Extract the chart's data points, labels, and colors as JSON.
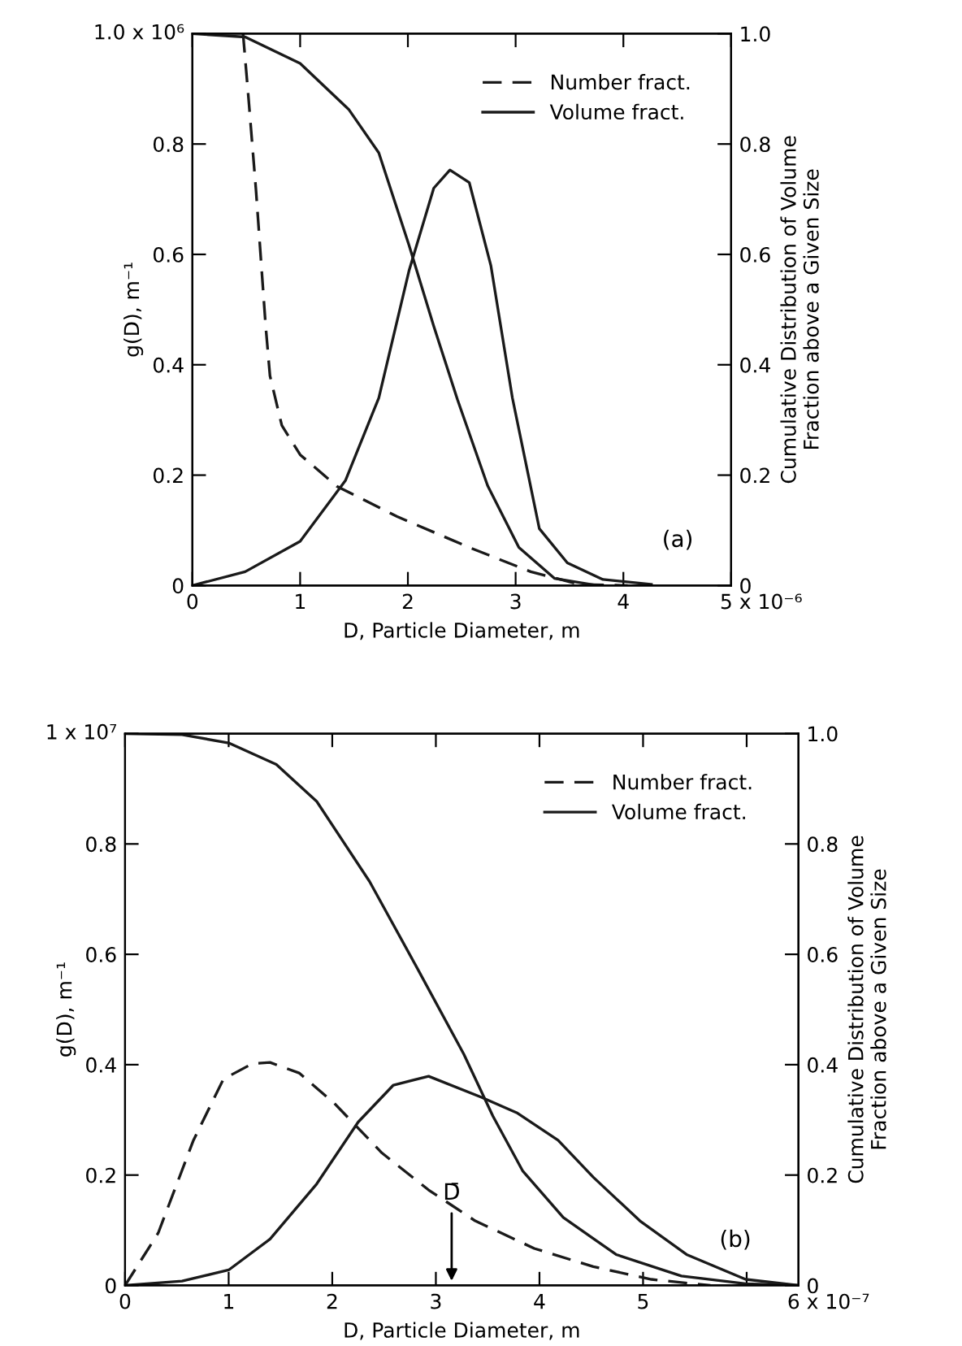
{
  "chart_data": [
    {
      "type": "line",
      "xlabel": "D, Particle Diameter, m",
      "ylabel": "g(D), m⁻¹",
      "y2label": "Cumulative Distribution of Volume\nFraction above a Given Size",
      "xlim": [
        0,
        5
      ],
      "xticks": [
        0,
        1,
        2,
        3,
        4,
        {
          "value": 5,
          "label": null
        }
      ],
      "ylim": [
        0,
        1.0
      ],
      "yticks": [
        0,
        0.2,
        0.4,
        0.6,
        0.8,
        {
          "value": 1.0,
          "label": null
        }
      ],
      "y2lim": [
        0,
        1.0
      ],
      "y2ticks": [
        0,
        0.2,
        0.4,
        0.6,
        0.8,
        {
          "value": 1,
          "label": "1.0"
        }
      ],
      "legend": "top right",
      "grid": false,
      "annotations": [
        "(a)",
        "1.0 x 10⁶",
        "5 x 10⁻⁶"
      ],
      "series": [
        {
          "name": "Number fract.",
          "color": "#1a1a1a",
          "line_style": "dashed",
          "x": [
            0.47,
            0.52,
            0.59,
            0.68,
            0.72,
            0.83,
            1.0,
            1.34,
            1.9,
            2.57,
            3.14,
            3.59,
            4.04
          ],
          "values": [
            1.0,
            0.885,
            0.717,
            0.47,
            0.38,
            0.29,
            0.237,
            0.18,
            0.125,
            0.069,
            0.025,
            0.002,
            0.0
          ]
        },
        {
          "name": "Volume fract.",
          "color": "#1a1a1a",
          "line_style": "solid",
          "x": [
            0,
            0.49,
            1.0,
            1.42,
            1.73,
            2.01,
            2.24,
            2.39,
            2.57,
            2.77,
            2.97,
            3.22,
            3.48,
            3.81,
            4.26
          ],
          "values": [
            0,
            0.025,
            0.08,
            0.19,
            0.34,
            0.57,
            0.72,
            0.753,
            0.73,
            0.58,
            0.34,
            0.103,
            0.041,
            0.011,
            0.002
          ]
        },
        {
          "color": "#1a1a1a",
          "line_style": "solid",
          "axis": "y2",
          "x": [
            0,
            0.49,
            1.0,
            1.45,
            1.73,
            2.01,
            2.24,
            2.46,
            2.74,
            3.03,
            3.36,
            3.76
          ],
          "values": [
            1.0,
            0.994,
            0.946,
            0.863,
            0.784,
            0.617,
            0.47,
            0.337,
            0.181,
            0.069,
            0.013,
            0.0
          ]
        }
      ]
    },
    {
      "type": "line",
      "xlabel": "D, Particle Diameter, m",
      "ylabel": "g(D), m⁻¹",
      "y2label": "Cumulative Distribution of Volume\nFraction above a Given Size",
      "xlim": [
        0,
        6.5
      ],
      "xticks": [
        0,
        1,
        2,
        3,
        4,
        5,
        {
          "value": 6,
          "label": null
        }
      ],
      "ylim": [
        0,
        1.0
      ],
      "yticks": [
        0,
        0.2,
        0.4,
        0.6,
        0.8,
        {
          "value": 1.0,
          "label": null
        }
      ],
      "y2lim": [
        0,
        1.0
      ],
      "y2ticks": [
        0,
        0.2,
        0.4,
        0.6,
        0.8,
        {
          "value": 1,
          "label": "1.0"
        }
      ],
      "legend": "top right",
      "grid": false,
      "annotations": [
        "(b)",
        "1 x 10⁷",
        "6 x 10⁻⁷",
        "D̄"
      ],
      "series": [
        {
          "name": "Number fract.",
          "color": "#1a1a1a",
          "line_style": "dashed",
          "x": [
            0,
            0.32,
            0.66,
            0.95,
            1.23,
            1.4,
            1.68,
            2.02,
            2.48,
            2.93,
            3.38,
            3.95,
            4.52,
            5.08,
            5.65
          ],
          "values": [
            0,
            0.095,
            0.263,
            0.374,
            0.402,
            0.404,
            0.385,
            0.33,
            0.24,
            0.173,
            0.117,
            0.067,
            0.034,
            0.011,
            0.0
          ]
        },
        {
          "name": "Volume fract.",
          "color": "#1a1a1a",
          "line_style": "solid",
          "x": [
            0,
            0.55,
            1.0,
            1.4,
            1.85,
            2.25,
            2.59,
            2.93,
            3.44,
            3.78,
            4.18,
            4.52,
            4.97,
            5.42,
            5.99,
            6.5
          ],
          "values": [
            0,
            0.008,
            0.028,
            0.084,
            0.184,
            0.296,
            0.363,
            0.379,
            0.341,
            0.313,
            0.263,
            0.196,
            0.117,
            0.056,
            0.011,
            0.0
          ]
        },
        {
          "color": "#1a1a1a",
          "line_style": "solid",
          "axis": "y2",
          "x": [
            0,
            0.55,
            1.0,
            1.46,
            1.85,
            2.36,
            2.82,
            3.27,
            3.55,
            3.84,
            4.23,
            4.74,
            5.37,
            5.99,
            6.5
          ],
          "values": [
            1.0,
            0.998,
            0.983,
            0.944,
            0.877,
            0.732,
            0.575,
            0.419,
            0.307,
            0.207,
            0.123,
            0.056,
            0.017,
            0.003,
            0.0
          ]
        }
      ]
    }
  ]
}
